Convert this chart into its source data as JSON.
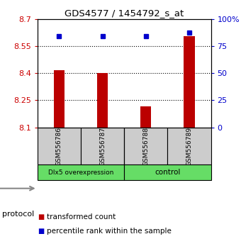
{
  "title": "GDS4577 / 1454792_s_at",
  "samples": [
    "GSM556786",
    "GSM556787",
    "GSM556788",
    "GSM556789"
  ],
  "bar_values": [
    8.415,
    8.402,
    8.215,
    8.605
  ],
  "percentile_values": [
    84,
    84,
    84,
    87
  ],
  "ylim": [
    8.1,
    8.7
  ],
  "yticks": [
    8.1,
    8.25,
    8.4,
    8.55,
    8.7
  ],
  "ytick_labels": [
    "8.1",
    "8.25",
    "8.4",
    "8.55",
    "8.7"
  ],
  "right_yticks": [
    0,
    25,
    50,
    75,
    100
  ],
  "right_ytick_labels": [
    "0",
    "25",
    "50",
    "75",
    "100%"
  ],
  "bar_color": "#bb0000",
  "dot_color": "#0000cc",
  "groups": [
    {
      "label": "Dlx5 overexpression",
      "samples": [
        0,
        1
      ],
      "color": "#66dd66"
    },
    {
      "label": "control",
      "samples": [
        2,
        3
      ],
      "color": "#66dd66"
    }
  ],
  "protocol_label": "protocol",
  "legend_items": [
    {
      "color": "#bb0000",
      "label": "transformed count"
    },
    {
      "color": "#0000cc",
      "label": "percentile rank within the sample"
    }
  ],
  "left_tick_color": "#cc0000",
  "right_tick_color": "#0000cc",
  "sample_box_color": "#cccccc",
  "background_color": "#ffffff",
  "bar_width": 0.25
}
